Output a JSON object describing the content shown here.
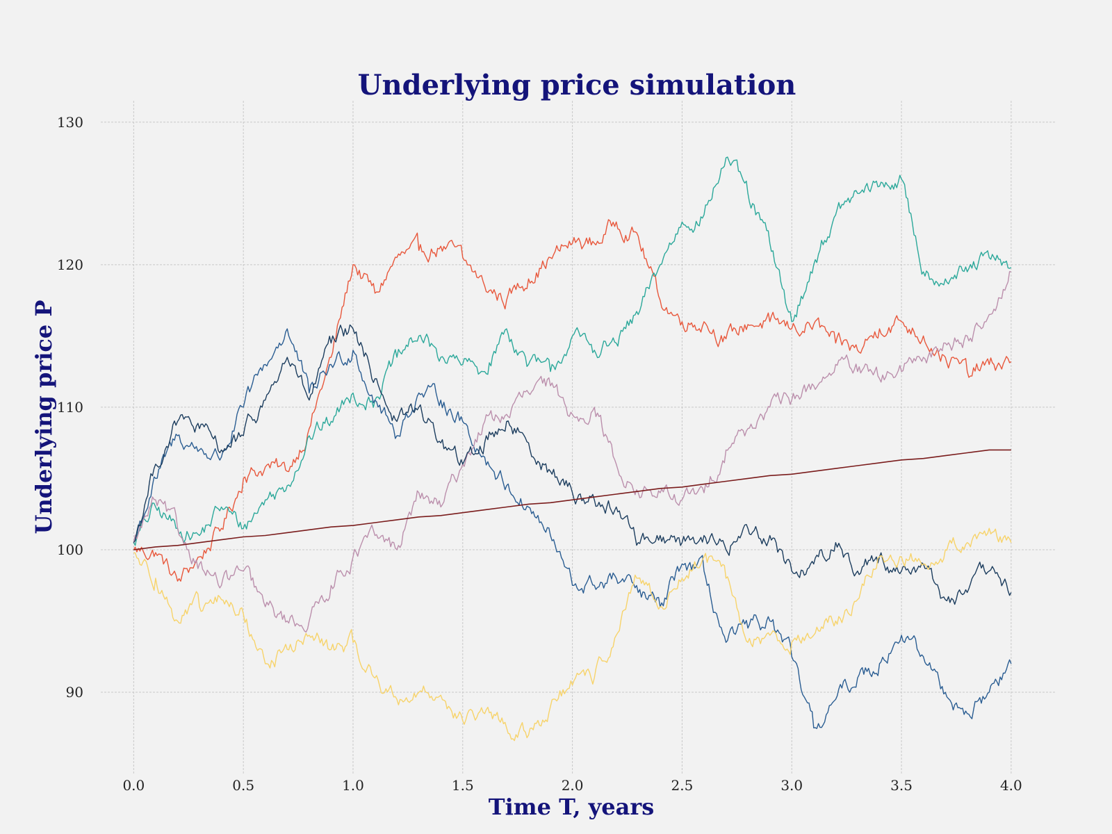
{
  "chart_data": {
    "type": "line",
    "title": "Underlying price simulation",
    "xlabel": "Time T, years",
    "ylabel": "Underlying price P",
    "xlim": [
      -0.15,
      4.2
    ],
    "ylim": [
      84.2,
      131.5
    ],
    "xticks": [
      0.0,
      0.5,
      1.0,
      1.5,
      2.0,
      2.5,
      3.0,
      3.5,
      4.0
    ],
    "xtick_labels": [
      "0.0",
      "0.5",
      "1.0",
      "1.5",
      "2.0",
      "2.5",
      "3.0",
      "3.5",
      "4.0"
    ],
    "yticks": [
      90,
      100,
      110,
      120,
      130
    ],
    "ytick_labels": [
      "90",
      "100",
      "110",
      "120",
      "130"
    ],
    "grid": true,
    "legend": "none",
    "x": [
      0.0,
      0.1,
      0.2,
      0.3,
      0.4,
      0.5,
      0.6,
      0.7,
      0.8,
      0.9,
      1.0,
      1.1,
      1.2,
      1.3,
      1.4,
      1.5,
      1.6,
      1.7,
      1.8,
      1.9,
      2.0,
      2.1,
      2.2,
      2.3,
      2.4,
      2.5,
      2.6,
      2.7,
      2.8,
      2.9,
      3.0,
      3.1,
      3.2,
      3.3,
      3.4,
      3.5,
      3.6,
      3.7,
      3.8,
      3.9,
      4.0
    ],
    "series": [
      {
        "color": "#e8573b",
        "values": [
          100.0,
          99.8,
          97.8,
          99.5,
          101.5,
          105.0,
          105.8,
          105.5,
          108.5,
          113.5,
          120.0,
          118.0,
          120.5,
          121.0,
          121.3,
          120.5,
          118.5,
          117.5,
          119.0,
          120.5,
          121.5,
          121.5,
          123.0,
          122.0,
          117.5,
          116.0,
          116.0,
          114.8,
          115.8,
          116.0,
          115.5,
          115.8,
          114.5,
          114.0,
          115.5,
          116.0,
          115.0,
          113.5,
          112.5,
          113.0,
          113.2
        ]
      },
      {
        "color": "#2ba89a",
        "values": [
          100.5,
          103.0,
          101.5,
          101.0,
          103.0,
          101.5,
          103.5,
          104.5,
          108.0,
          109.0,
          111.0,
          110.5,
          113.5,
          115.0,
          113.5,
          113.0,
          112.5,
          115.5,
          113.0,
          112.5,
          115.0,
          114.0,
          114.5,
          116.5,
          120.0,
          123.0,
          123.5,
          127.5,
          125.0,
          121.5,
          116.0,
          120.0,
          123.5,
          125.0,
          125.5,
          126.0,
          119.5,
          119.0,
          119.5,
          120.5,
          119.8
        ]
      },
      {
        "color": "#2a5d92",
        "values": [
          100.5,
          105.0,
          108.0,
          107.0,
          106.5,
          110.0,
          113.0,
          115.5,
          111.0,
          113.0,
          114.0,
          110.5,
          108.0,
          111.0,
          110.5,
          109.0,
          106.5,
          104.5,
          103.0,
          101.0,
          97.5,
          97.5,
          98.0,
          97.0,
          96.0,
          99.0,
          98.5,
          93.5,
          94.5,
          95.0,
          92.5,
          87.5,
          89.5,
          91.0,
          92.0,
          94.0,
          92.5,
          90.0,
          88.5,
          90.0,
          92.0
        ]
      },
      {
        "color": "#bb8fac",
        "values": [
          100.5,
          103.5,
          101.5,
          99.0,
          97.5,
          98.5,
          96.0,
          95.0,
          95.0,
          97.5,
          99.5,
          101.0,
          100.0,
          104.0,
          103.0,
          106.0,
          109.0,
          109.5,
          111.0,
          111.5,
          109.5,
          110.0,
          106.0,
          104.0,
          104.0,
          103.5,
          104.0,
          107.0,
          108.5,
          110.0,
          110.5,
          111.5,
          113.0,
          112.5,
          112.0,
          112.5,
          113.5,
          114.5,
          115.0,
          116.5,
          119.5
        ]
      },
      {
        "color": "#1c3d5e",
        "values": [
          100.5,
          106.0,
          109.0,
          108.5,
          107.0,
          108.0,
          110.5,
          113.5,
          110.5,
          114.5,
          115.5,
          112.0,
          109.0,
          110.0,
          107.5,
          106.0,
          107.5,
          109.0,
          107.5,
          105.5,
          104.0,
          103.5,
          103.0,
          100.5,
          101.0,
          100.5,
          101.0,
          100.0,
          101.5,
          101.0,
          98.5,
          99.0,
          100.5,
          98.5,
          99.5,
          98.5,
          99.0,
          96.5,
          97.0,
          98.5,
          97.0
        ]
      },
      {
        "color": "#f7d36a",
        "values": [
          99.8,
          98.0,
          95.0,
          96.0,
          96.5,
          95.5,
          92.0,
          93.0,
          94.0,
          93.0,
          93.5,
          91.0,
          89.5,
          90.0,
          89.8,
          88.0,
          88.5,
          87.5,
          87.0,
          89.0,
          90.5,
          91.0,
          94.0,
          98.0,
          96.0,
          98.0,
          99.5,
          98.0,
          93.5,
          94.0,
          93.5,
          94.0,
          95.0,
          96.5,
          99.5,
          99.5,
          99.0,
          100.0,
          100.5,
          101.5,
          100.5
        ]
      },
      {
        "color": "#7a1c1c",
        "values": [
          100.0,
          100.2,
          100.3,
          100.5,
          100.7,
          100.9,
          101.0,
          101.2,
          101.4,
          101.6,
          101.7,
          101.9,
          102.1,
          102.3,
          102.4,
          102.6,
          102.8,
          103.0,
          103.2,
          103.3,
          103.5,
          103.7,
          103.9,
          104.1,
          104.3,
          104.4,
          104.6,
          104.8,
          105.0,
          105.2,
          105.3,
          105.5,
          105.7,
          105.9,
          106.1,
          106.3,
          106.4,
          106.6,
          106.8,
          107.0,
          107.0
        ]
      }
    ]
  }
}
